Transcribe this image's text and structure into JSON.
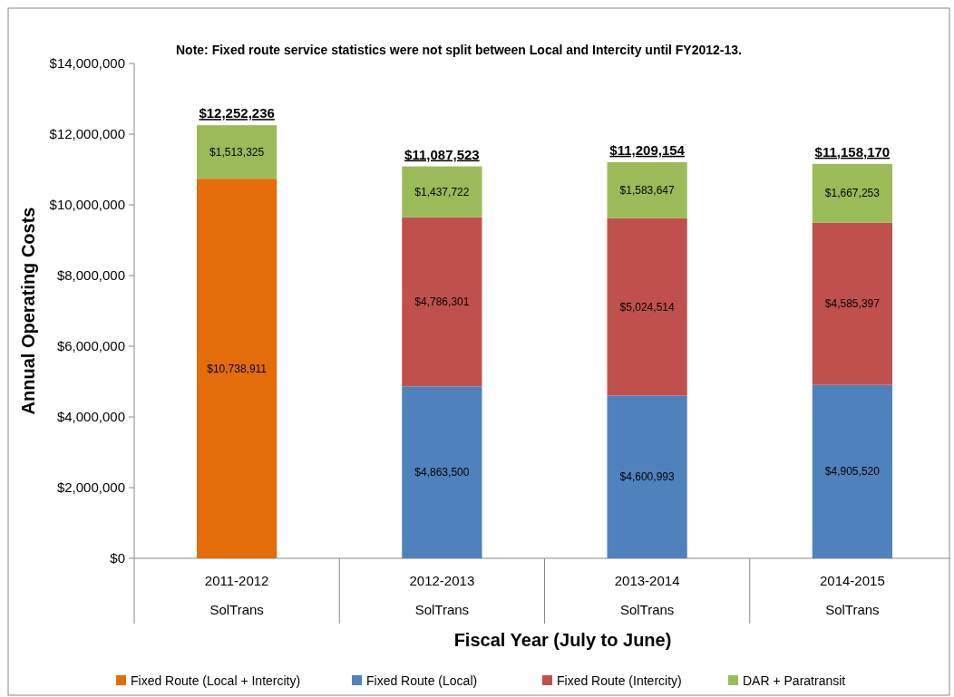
{
  "chart_data": {
    "type": "bar",
    "stacked": true,
    "xlabel": "Fiscal Year (July to June)",
    "ylabel": "Annual Operating Costs",
    "categories": [
      "2011-2012\nSolTrans",
      "2012-2013\nSolTrans",
      "2013-2014\nSolTrans",
      "2014-2015\nSolTrans"
    ],
    "series": [
      {
        "name": "Fixed Route (Local + Intercity)",
        "color": "#e46c0a",
        "values": [
          10738911,
          null,
          null,
          null
        ],
        "value_labels": [
          "$10,738,911",
          null,
          null,
          null
        ]
      },
      {
        "name": "Fixed Route (Local)",
        "color": "#4f81bd",
        "values": [
          null,
          4863500,
          4600993,
          4905520
        ],
        "value_labels": [
          null,
          "$4,863,500",
          "$4,600,993",
          "$4,905,520"
        ]
      },
      {
        "name": "Fixed Route (Intercity)",
        "color": "#c0504d",
        "values": [
          null,
          4786301,
          5024514,
          4585397
        ],
        "value_labels": [
          null,
          "$4,786,301",
          "$5,024,514",
          "$4,585,397"
        ]
      },
      {
        "name": "DAR + Paratransit",
        "color": "#9bbb59",
        "values": [
          1513325,
          1437722,
          1583647,
          1667253
        ],
        "value_labels": [
          "$1,513,325",
          "$1,437,722",
          "$1,583,647",
          "$1,667,253"
        ]
      }
    ],
    "totals": [
      "$12,252,236",
      "$11,087,523",
      "$11,209,154",
      "$11,158,170"
    ],
    "ylim": [
      0,
      14000000
    ],
    "yticks": [
      {
        "value": 0,
        "label": "$0"
      },
      {
        "value": 2000000,
        "label": "$2,000,000"
      },
      {
        "value": 4000000,
        "label": "$4,000,000"
      },
      {
        "value": 6000000,
        "label": "$6,000,000"
      },
      {
        "value": 8000000,
        "label": "$8,000,000"
      },
      {
        "value": 10000000,
        "label": "$10,000,000"
      },
      {
        "value": 12000000,
        "label": "$12,000,000"
      },
      {
        "value": 14000000,
        "label": "$14,000,000"
      }
    ],
    "legend": "bottom",
    "annotations": [
      "Note: Fixed route service statistics were not split between Local and Intercity until FY2012-13."
    ]
  }
}
